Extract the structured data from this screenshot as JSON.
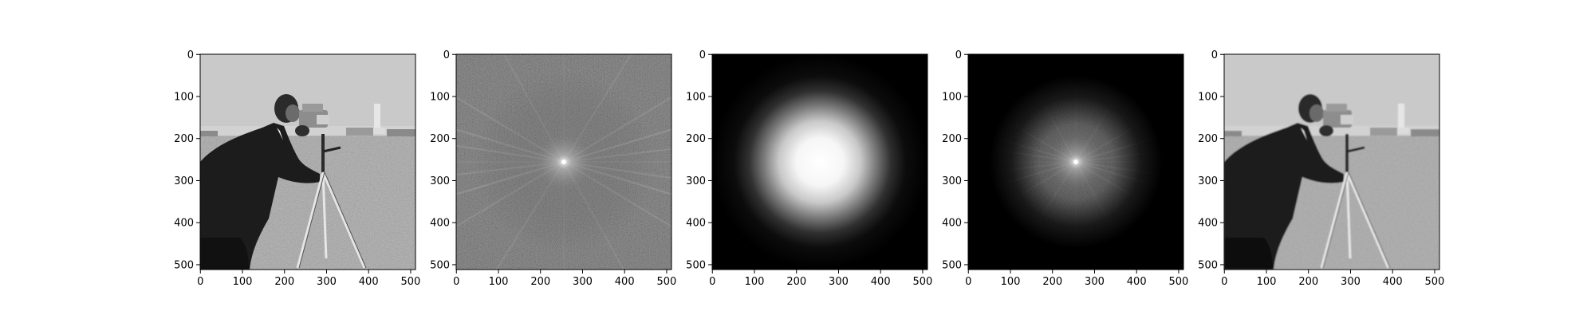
{
  "figure": {
    "background": "#ffffff",
    "panels": [
      {
        "id": "original-image",
        "content": "cameraman photo: man in dark coat looking through a camera on a tripod, grassy field, buildings in background",
        "xticks": [
          "0",
          "100",
          "200",
          "300",
          "400",
          "500"
        ],
        "yticks": [
          "0",
          "100",
          "200",
          "300",
          "400",
          "500"
        ]
      },
      {
        "id": "magnitude-spectrum",
        "content": "log magnitude Fourier spectrum, bright centre with radiating streaks on dark noisy background",
        "xticks": [
          "0",
          "100",
          "200",
          "300",
          "400",
          "500"
        ],
        "yticks": [
          "0",
          "100",
          "200",
          "300",
          "400",
          "500"
        ]
      },
      {
        "id": "gaussian-filter",
        "content": "Gaussian low-pass filter mask, white disc centred on black background",
        "xticks": [
          "0",
          "100",
          "200",
          "300",
          "400",
          "500"
        ],
        "yticks": [
          "0",
          "100",
          "200",
          "300",
          "400",
          "500"
        ]
      },
      {
        "id": "filtered-spectrum",
        "content": "spectrum multiplied by Gaussian mask, centre kept and outer region darkened",
        "xticks": [
          "0",
          "100",
          "200",
          "300",
          "400",
          "500"
        ],
        "yticks": [
          "0",
          "100",
          "200",
          "300",
          "400",
          "500"
        ]
      },
      {
        "id": "reconstructed-image",
        "content": "low-pass filtered (slightly blurred) cameraman photo",
        "xticks": [
          "0",
          "100",
          "200",
          "300",
          "400",
          "500"
        ],
        "yticks": [
          "0",
          "100",
          "200",
          "300",
          "400",
          "500"
        ]
      }
    ]
  },
  "chart_data": [
    {
      "type": "heatmap",
      "description": "Original image (512x512 grayscale)",
      "xlim": [
        0,
        512
      ],
      "ylim": [
        512,
        0
      ],
      "xticks": [
        0,
        100,
        200,
        300,
        400,
        500
      ],
      "yticks": [
        0,
        100,
        200,
        300,
        400,
        500
      ],
      "colormap": "gray"
    },
    {
      "type": "heatmap",
      "description": "Magnitude spectrum (shifted, log scale)",
      "xlim": [
        0,
        512
      ],
      "ylim": [
        512,
        0
      ],
      "xticks": [
        0,
        100,
        200,
        300,
        400,
        500
      ],
      "yticks": [
        0,
        100,
        200,
        300,
        400,
        500
      ],
      "colormap": "gray",
      "center": [
        256,
        256
      ]
    },
    {
      "type": "heatmap",
      "description": "Gaussian low-pass mask",
      "xlim": [
        0,
        512
      ],
      "ylim": [
        512,
        0
      ],
      "xticks": [
        0,
        100,
        200,
        300,
        400,
        500
      ],
      "yticks": [
        0,
        100,
        200,
        300,
        400,
        500
      ],
      "colormap": "gray",
      "center": [
        256,
        256
      ]
    },
    {
      "type": "heatmap",
      "description": "Filtered spectrum",
      "xlim": [
        0,
        512
      ],
      "ylim": [
        512,
        0
      ],
      "xticks": [
        0,
        100,
        200,
        300,
        400,
        500
      ],
      "yticks": [
        0,
        100,
        200,
        300,
        400,
        500
      ],
      "colormap": "gray",
      "center": [
        256,
        256
      ]
    },
    {
      "type": "heatmap",
      "description": "Reconstructed (inverse FFT) image",
      "xlim": [
        0,
        512
      ],
      "ylim": [
        512,
        0
      ],
      "xticks": [
        0,
        100,
        200,
        300,
        400,
        500
      ],
      "yticks": [
        0,
        100,
        200,
        300,
        400,
        500
      ],
      "colormap": "gray"
    }
  ]
}
